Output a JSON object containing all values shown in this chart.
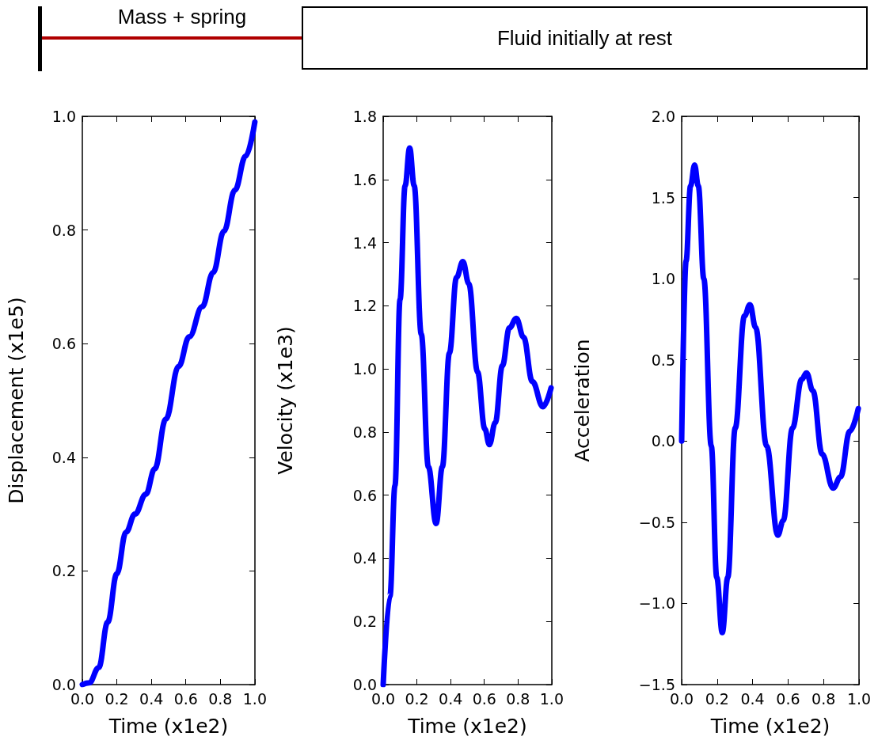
{
  "chart_data": [
    {
      "type": "other",
      "annotations": [
        "Mass + spring",
        "Fluid initially at rest"
      ]
    },
    {
      "type": "line",
      "xlabel": "Time (x1e2)",
      "ylabel": "Displacement (x1e5)",
      "xlim": [
        0,
        1
      ],
      "ylim": [
        0,
        1
      ],
      "xticks": [
        {
          "value": 0,
          "label": "0.0"
        },
        {
          "value": 0.2,
          "label": "0.2"
        },
        {
          "value": 0.4,
          "label": "0.4"
        },
        {
          "value": 0.6,
          "label": "0.6"
        },
        {
          "value": 0.8,
          "label": "0.8"
        },
        {
          "value": 1,
          "label": "1.0"
        }
      ],
      "yticks": [
        {
          "value": 0,
          "label": "0.0"
        },
        {
          "value": 0.2,
          "label": "0.2"
        },
        {
          "value": 0.4,
          "label": "0.4"
        },
        {
          "value": 0.6,
          "label": "0.6"
        },
        {
          "value": 0.8,
          "label": "0.8"
        },
        {
          "value": 1,
          "label": "1.0"
        }
      ],
      "grid": false,
      "marker": "none",
      "line_style": "solid",
      "series": [
        {
          "color": "#0000ff",
          "x": [
            0,
            0.04,
            0.095,
            0.147,
            0.2,
            0.253,
            0.305,
            0.368,
            0.42,
            0.484,
            0.558,
            0.62,
            0.695,
            0.758,
            0.821,
            0.884,
            0.947,
            1.0
          ],
          "values": [
            0,
            0.003,
            0.03,
            0.11,
            0.195,
            0.268,
            0.3,
            0.335,
            0.38,
            0.467,
            0.56,
            0.612,
            0.665,
            0.725,
            0.798,
            0.87,
            0.93,
            0.99
          ]
        }
      ]
    },
    {
      "type": "line",
      "xlabel": "Time (x1e2)",
      "ylabel": "Velocity (x1e3)",
      "xlim": [
        0,
        1
      ],
      "ylim": [
        0,
        1.8
      ],
      "xticks": [
        {
          "value": 0,
          "label": "0.0"
        },
        {
          "value": 0.2,
          "label": "0.2"
        },
        {
          "value": 0.4,
          "label": "0.4"
        },
        {
          "value": 0.6,
          "label": "0.6"
        },
        {
          "value": 0.8,
          "label": "0.8"
        },
        {
          "value": 1,
          "label": "1.0"
        }
      ],
      "yticks": [
        {
          "value": 0,
          "label": "0.0"
        },
        {
          "value": 0.2,
          "label": "0.2"
        },
        {
          "value": 0.4,
          "label": "0.4"
        },
        {
          "value": 0.6,
          "label": "0.6"
        },
        {
          "value": 0.8,
          "label": "0.8"
        },
        {
          "value": 1,
          "label": "1.0"
        },
        {
          "value": 1.2,
          "label": "1.2"
        },
        {
          "value": 1.4,
          "label": "1.4"
        },
        {
          "value": 1.6,
          "label": "1.6"
        },
        {
          "value": 1.8,
          "label": "1.8"
        }
      ],
      "grid": false,
      "marker": "none",
      "line_style": "solid",
      "series": [
        {
          "color": "#0000ff",
          "x": [
            0,
            0.04,
            0.07,
            0.1,
            0.13,
            0.157,
            0.184,
            0.226,
            0.268,
            0.314,
            0.351,
            0.393,
            0.435,
            0.473,
            0.508,
            0.56,
            0.603,
            0.63,
            0.665,
            0.707,
            0.749,
            0.79,
            0.833,
            0.885,
            0.948,
            0.996
          ],
          "values": [
            0,
            0.28,
            0.63,
            1.22,
            1.58,
            1.7,
            1.58,
            1.11,
            0.69,
            0.51,
            0.69,
            1.05,
            1.29,
            1.34,
            1.27,
            0.99,
            0.81,
            0.76,
            0.83,
            1.01,
            1.13,
            1.16,
            1.1,
            0.96,
            0.88,
            0.94
          ]
        }
      ]
    },
    {
      "type": "line",
      "xlabel": "Time (x1e2)",
      "ylabel": "Acceleration",
      "xlim": [
        0,
        1
      ],
      "ylim": [
        -1.5,
        2
      ],
      "xticks": [
        {
          "value": 0,
          "label": "0.0"
        },
        {
          "value": 0.2,
          "label": "0.2"
        },
        {
          "value": 0.4,
          "label": "0.4"
        },
        {
          "value": 0.6,
          "label": "0.6"
        },
        {
          "value": 0.8,
          "label": "0.8"
        },
        {
          "value": 1,
          "label": "1.0"
        }
      ],
      "yticks": [
        {
          "value": -1.5,
          "label": "−1.5"
        },
        {
          "value": -1,
          "label": "−1.0"
        },
        {
          "value": -0.5,
          "label": "−0.5"
        },
        {
          "value": 0,
          "label": "0.0"
        },
        {
          "value": 0.5,
          "label": "0.5"
        },
        {
          "value": 1,
          "label": "1.0"
        },
        {
          "value": 1.5,
          "label": "1.5"
        },
        {
          "value": 2,
          "label": "2.0"
        }
      ],
      "grid": false,
      "marker": "none",
      "line_style": "solid",
      "series": [
        {
          "color": "#0000ff",
          "x": [
            0,
            0.025,
            0.05,
            0.073,
            0.094,
            0.125,
            0.167,
            0.198,
            0.229,
            0.26,
            0.302,
            0.354,
            0.385,
            0.417,
            0.479,
            0.542,
            0.573,
            0.625,
            0.677,
            0.704,
            0.74,
            0.792,
            0.854,
            0.896,
            0.948,
            0.996
          ],
          "values": [
            0,
            1.11,
            1.57,
            1.7,
            1.57,
            1.0,
            -0.03,
            -0.84,
            -1.18,
            -0.84,
            0.08,
            0.77,
            0.84,
            0.7,
            -0.03,
            -0.58,
            -0.49,
            0.08,
            0.38,
            0.42,
            0.31,
            -0.08,
            -0.29,
            -0.22,
            0.06,
            0.2
          ]
        }
      ]
    }
  ]
}
